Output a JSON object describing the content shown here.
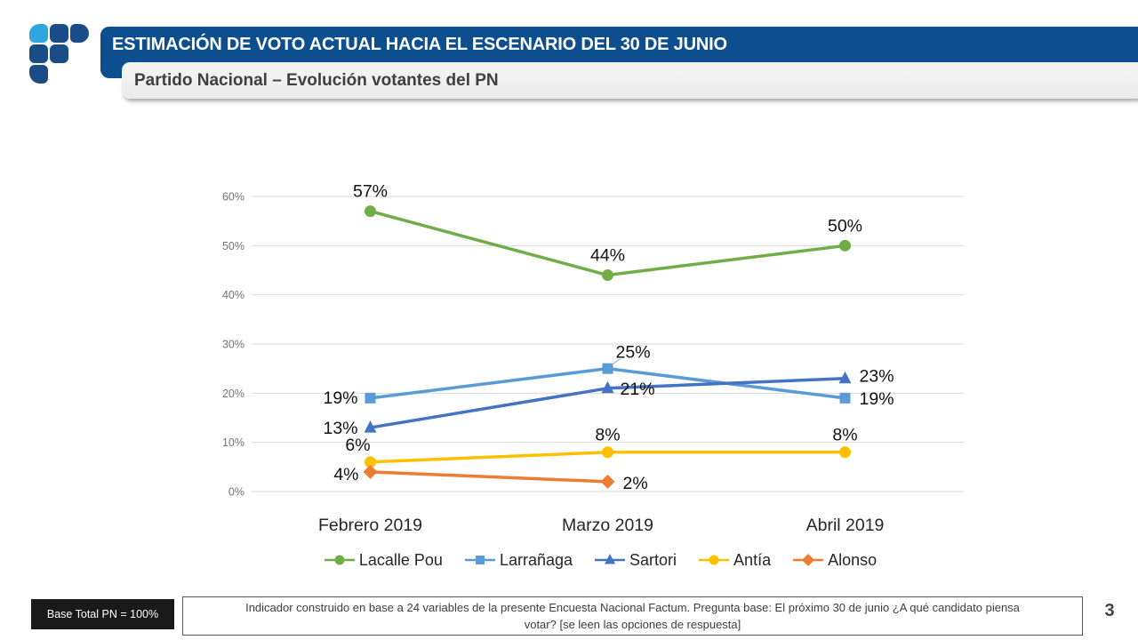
{
  "header": {
    "title": "ESTIMACIÓN DE VOTO ACTUAL HACIA EL ESCENARIO DEL 30 DE JUNIO",
    "subtitle": "Partido Nacional – Evolución votantes del PN",
    "title_bar_color": "#0d4e8f",
    "logo_colors": {
      "light_blue": "#2fa6e0",
      "dark_blue": "#1a4d87"
    }
  },
  "chart_data": {
    "type": "line",
    "title": "",
    "categories": [
      "Febrero 2019",
      "Marzo 2019",
      "Abril 2019"
    ],
    "series": [
      {
        "name": "Lacalle Pou",
        "color": "#70AD47",
        "marker": "circle",
        "values": [
          57,
          44,
          50
        ]
      },
      {
        "name": "Larrañaga",
        "color": "#5B9BD5",
        "marker": "square",
        "values": [
          19,
          25,
          19
        ]
      },
      {
        "name": "Sartori",
        "color": "#4472C4",
        "marker": "triangle",
        "values": [
          13,
          21,
          23
        ]
      },
      {
        "name": "Antía",
        "color": "#FFC000",
        "marker": "circle",
        "values": [
          6,
          8,
          8
        ]
      },
      {
        "name": "Alonso",
        "color": "#ED7D31",
        "marker": "diamond",
        "values": [
          4,
          2,
          null
        ]
      }
    ],
    "value_suffix": "%",
    "ylim": [
      0,
      60
    ],
    "ytick_step": 10,
    "ytick_labels": [
      "0%",
      "10%",
      "20%",
      "30%",
      "40%",
      "50%",
      "60%"
    ],
    "grid": true,
    "gridline_color": "#D9D9D9",
    "tick_label_color": "#737373",
    "legend_position": "bottom",
    "label_layout": [
      [
        [
          0,
          -16,
          "middle"
        ],
        [
          0,
          -16,
          "middle"
        ],
        [
          0,
          -16,
          "middle"
        ]
      ],
      [
        [
          -14,
          6,
          "end"
        ],
        [
          9,
          -12,
          "start"
        ],
        [
          16,
          7,
          "start"
        ]
      ],
      [
        [
          -14,
          7,
          "end"
        ],
        [
          14,
          7,
          "start"
        ],
        [
          16,
          4,
          "start"
        ]
      ],
      [
        [
          -14,
          -13,
          "middle"
        ],
        [
          0,
          -13,
          "middle"
        ],
        [
          0,
          -13,
          "middle"
        ]
      ],
      [
        [
          -13,
          9,
          "end"
        ],
        [
          17,
          8,
          "start"
        ],
        null
      ]
    ],
    "leader_lines": [
      {
        "series": 1,
        "point": 1,
        "dx1": 4,
        "dy1": -4,
        "dx2": 14,
        "dy2": -11
      }
    ]
  },
  "footer": {
    "base_label": "Base Total PN = 100%",
    "note_lines": [
      "Indicador construido en base a 24 variables de la presente Encuesta Nacional Factum. Pregunta base: El próximo 30 de junio  ¿A qué candidato piensa",
      "votar?  [se leen las opciones de respuesta]"
    ],
    "page_number": "3"
  }
}
